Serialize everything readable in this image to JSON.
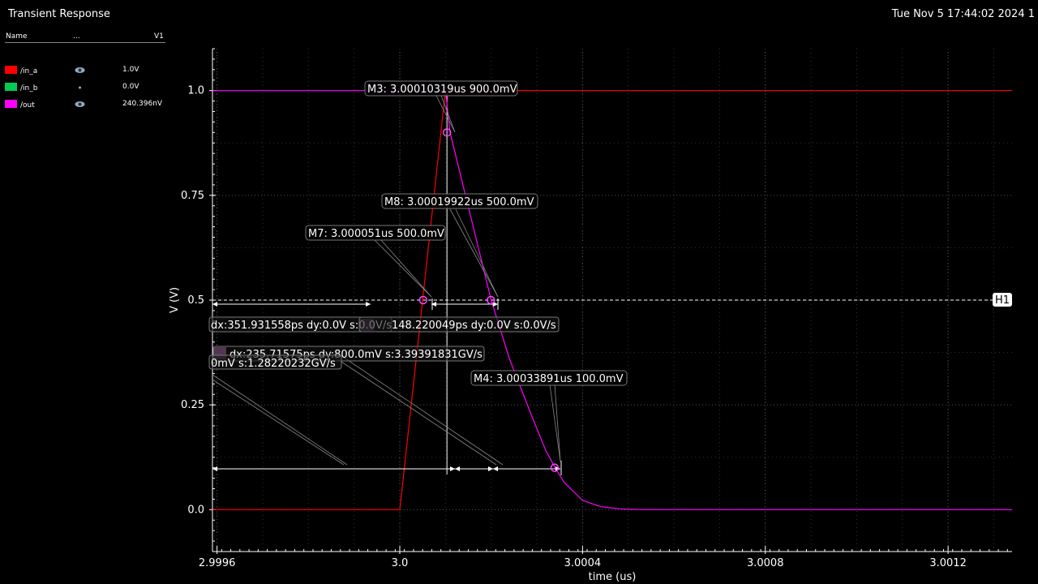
{
  "window": {
    "title": "Transient Response",
    "datestamp": "Tue Nov 5 17:44:02 2024  1"
  },
  "legend": {
    "headers": {
      "name": "Name",
      "dots": "...",
      "value": "V1"
    },
    "items": [
      {
        "name": "/in_a",
        "color": "#ff0000",
        "value": "1.0V",
        "icon": "eye-icon"
      },
      {
        "name": "/in_b",
        "color": "#00cc55",
        "value": "0.0V",
        "icon": "dot-icon"
      },
      {
        "name": "/out",
        "color": "#ff00ff",
        "value": "240.396nV",
        "icon": "eye-icon"
      }
    ]
  },
  "chart_data": {
    "type": "line",
    "xlabel": "time (us)",
    "ylabel": "V (V)",
    "xlim": [
      2.99959,
      3.00134
    ],
    "ylim": [
      -0.1,
      1.1
    ],
    "xticks": [
      {
        "v": 2.9996,
        "label": "2.9996"
      },
      {
        "v": 3.0,
        "label": "3.0"
      },
      {
        "v": 3.0004,
        "label": "3.0004"
      },
      {
        "v": 3.0008,
        "label": "3.0008"
      },
      {
        "v": 3.0012,
        "label": "3.0012"
      }
    ],
    "yticks": [
      {
        "v": 0.0,
        "label": "0.0"
      },
      {
        "v": 0.25,
        "label": "0.25"
      },
      {
        "v": 0.5,
        "label": "0.5"
      },
      {
        "v": 0.75,
        "label": "0.75"
      },
      {
        "v": 1.0,
        "label": "1.0"
      }
    ],
    "grid": true,
    "series": [
      {
        "name": "/in_a",
        "color": "#ff0000",
        "x": [
          2.99959,
          3.0,
          3.0001,
          3.00134
        ],
        "y": [
          0.0,
          0.0,
          1.0,
          1.0
        ]
      },
      {
        "name": "/out",
        "color": "#ff00ff",
        "x": [
          2.99959,
          3.0001,
          3.00011,
          3.0002,
          3.00024,
          3.00029,
          3.00032,
          3.00034,
          3.00036,
          3.0004,
          3.00044,
          3.00048,
          3.00052,
          3.00058,
          3.0007,
          3.00134
        ],
        "y": [
          1.0,
          1.0,
          0.9,
          0.5,
          0.36,
          0.22,
          0.14,
          0.1,
          0.065,
          0.022,
          0.007,
          0.002,
          0.0005,
          0.0,
          0.0,
          0.0
        ]
      }
    ],
    "hline": {
      "y": 0.5,
      "label": "H1"
    },
    "markers": [
      {
        "id": "M3",
        "x": 3.00010319,
        "y": 0.9,
        "label": "M3: 3.00010319us 900.0mV"
      },
      {
        "id": "M8",
        "x": 3.00019922,
        "y": 0.5,
        "label": "M8: 3.00019922us 500.0mV"
      },
      {
        "id": "M7",
        "x": 3.000051,
        "y": 0.5,
        "label": "M7: 3.000051us 500.0mV"
      },
      {
        "id": "M4",
        "x": 3.00033891,
        "y": 0.1,
        "label": "M4: 3.00033891us 100.0mV"
      }
    ],
    "deltas": [
      {
        "label": "dx:351.931558ps dy:0.0V s:0.0V/s"
      },
      {
        "label": "148.220049ps dy:0.0V s:0.0V/s"
      },
      {
        "label": "dx:235.71575ps dy:800.0mV s:3.39391831GV/s"
      },
      {
        "label": "0mV s:1.28220232GV/s"
      }
    ]
  }
}
